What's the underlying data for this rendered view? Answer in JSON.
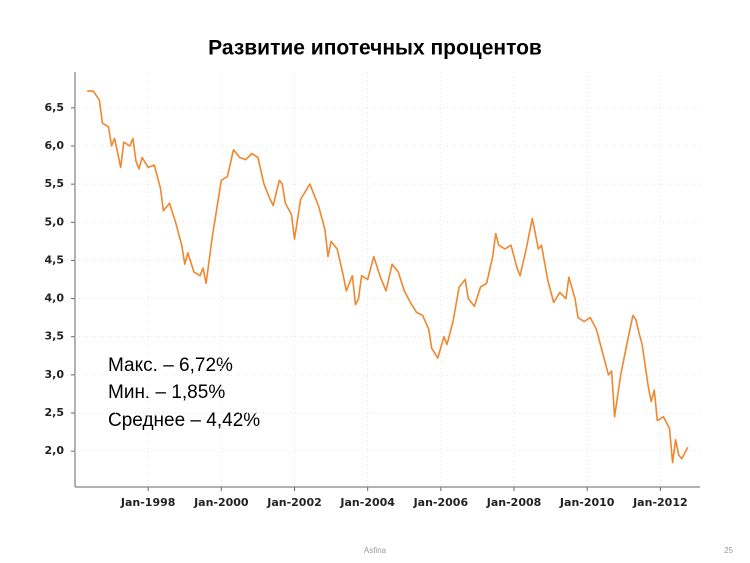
{
  "chart_data": {
    "type": "line",
    "title": "Развитие ипотечных  процентов",
    "x": [
      "1996-05",
      "1996-07",
      "1996-09",
      "1996-10",
      "1996-12",
      "1997-01",
      "1997-02",
      "1997-04",
      "1997-05",
      "1997-07",
      "1997-08",
      "1997-09",
      "1997-10",
      "1997-11",
      "1998-01",
      "1998-03",
      "1998-05",
      "1998-06",
      "1998-08",
      "1998-10",
      "1998-12",
      "1999-01",
      "1999-02",
      "1999-04",
      "1999-06",
      "1999-07",
      "1999-08",
      "1999-10",
      "2000-01",
      "2000-03",
      "2000-05",
      "2000-07",
      "2000-09",
      "2000-11",
      "2001-01",
      "2001-03",
      "2001-05",
      "2001-06",
      "2001-08",
      "2001-09",
      "2001-10",
      "2001-12",
      "2002-01",
      "2002-03",
      "2002-06",
      "2002-09",
      "2002-11",
      "2002-12",
      "2003-01",
      "2003-03",
      "2003-05",
      "2003-06",
      "2003-08",
      "2003-09",
      "2003-10",
      "2003-11",
      "2004-01",
      "2004-03",
      "2004-05",
      "2004-07",
      "2004-09",
      "2004-11",
      "2005-01",
      "2005-03",
      "2005-05",
      "2005-07",
      "2005-09",
      "2005-10",
      "2005-12",
      "2006-02",
      "2006-03",
      "2006-05",
      "2006-07",
      "2006-09",
      "2006-10",
      "2006-12",
      "2007-02",
      "2007-04",
      "2007-06",
      "2007-07",
      "2007-08",
      "2007-10",
      "2007-12",
      "2008-02",
      "2008-03",
      "2008-05",
      "2008-07",
      "2008-09",
      "2008-10",
      "2008-12",
      "2009-02",
      "2009-04",
      "2009-06",
      "2009-07",
      "2009-09",
      "2009-10",
      "2009-12",
      "2010-02",
      "2010-04",
      "2010-06",
      "2010-08",
      "2010-09",
      "2010-10",
      "2010-12",
      "2011-02",
      "2011-04",
      "2011-05",
      "2011-06",
      "2011-07",
      "2011-09",
      "2011-10",
      "2011-11",
      "2011-12",
      "2012-02",
      "2012-04",
      "2012-05",
      "2012-06",
      "2012-07",
      "2012-08",
      "2012-10"
    ],
    "values": [
      6.72,
      6.72,
      6.6,
      6.3,
      6.25,
      6.0,
      6.1,
      5.72,
      6.05,
      6.0,
      6.1,
      5.8,
      5.7,
      5.85,
      5.72,
      5.75,
      5.45,
      5.15,
      5.25,
      5.0,
      4.7,
      4.45,
      4.6,
      4.35,
      4.3,
      4.4,
      4.2,
      4.8,
      5.55,
      5.6,
      5.95,
      5.85,
      5.82,
      5.9,
      5.85,
      5.5,
      5.3,
      5.22,
      5.55,
      5.5,
      5.25,
      5.1,
      4.78,
      5.3,
      5.5,
      5.2,
      4.9,
      4.55,
      4.75,
      4.65,
      4.3,
      4.1,
      4.3,
      3.92,
      4.0,
      4.3,
      4.25,
      4.55,
      4.3,
      4.1,
      4.45,
      4.35,
      4.1,
      3.95,
      3.82,
      3.78,
      3.6,
      3.35,
      3.22,
      3.5,
      3.4,
      3.7,
      4.15,
      4.25,
      4.0,
      3.9,
      4.15,
      4.2,
      4.55,
      4.85,
      4.7,
      4.65,
      4.7,
      4.4,
      4.3,
      4.65,
      5.05,
      4.65,
      4.7,
      4.25,
      3.95,
      4.08,
      4.0,
      4.28,
      4.0,
      3.75,
      3.7,
      3.75,
      3.6,
      3.3,
      3.0,
      3.05,
      2.45,
      3.0,
      3.4,
      3.78,
      3.72,
      3.55,
      3.4,
      2.85,
      2.65,
      2.8,
      2.4,
      2.45,
      2.3,
      1.85,
      2.15,
      1.95,
      1.9,
      2.05
    ],
    "color": "#f0862e",
    "xlim": [
      "1996-01",
      "2013-02"
    ],
    "xticks": [
      {
        "value": "1998-01",
        "label": "Jan-1998"
      },
      {
        "value": "2000-01",
        "label": "Jan-2000"
      },
      {
        "value": "2002-01",
        "label": "Jan-2002"
      },
      {
        "value": "2004-01",
        "label": "Jan-2004"
      },
      {
        "value": "2006-01",
        "label": "Jan-2006"
      },
      {
        "value": "2008-01",
        "label": "Jan-2008"
      },
      {
        "value": "2010-01",
        "label": "Jan-2010"
      },
      {
        "value": "2012-01",
        "label": "Jan-2012"
      }
    ],
    "ylim": [
      1.53,
      6.97
    ],
    "yticks": [
      {
        "value": 2.0,
        "label": "2,0"
      },
      {
        "value": 2.5,
        "label": "2,5"
      },
      {
        "value": 3.0,
        "label": "3,0"
      },
      {
        "value": 3.5,
        "label": "3,5"
      },
      {
        "value": 4.0,
        "label": "4,0"
      },
      {
        "value": 4.5,
        "label": "4,5"
      },
      {
        "value": 5.0,
        "label": "5,0"
      },
      {
        "value": 5.5,
        "label": "5,5"
      },
      {
        "value": 6.0,
        "label": "6,0"
      },
      {
        "value": 6.5,
        "label": "6,5"
      }
    ],
    "grid": true,
    "annotations": [
      "Макс. – 6,72%",
      "Мин. – 1,85%",
      "Среднее – 4,42%"
    ]
  },
  "footer": {
    "source": "Asfina",
    "page": "25"
  }
}
